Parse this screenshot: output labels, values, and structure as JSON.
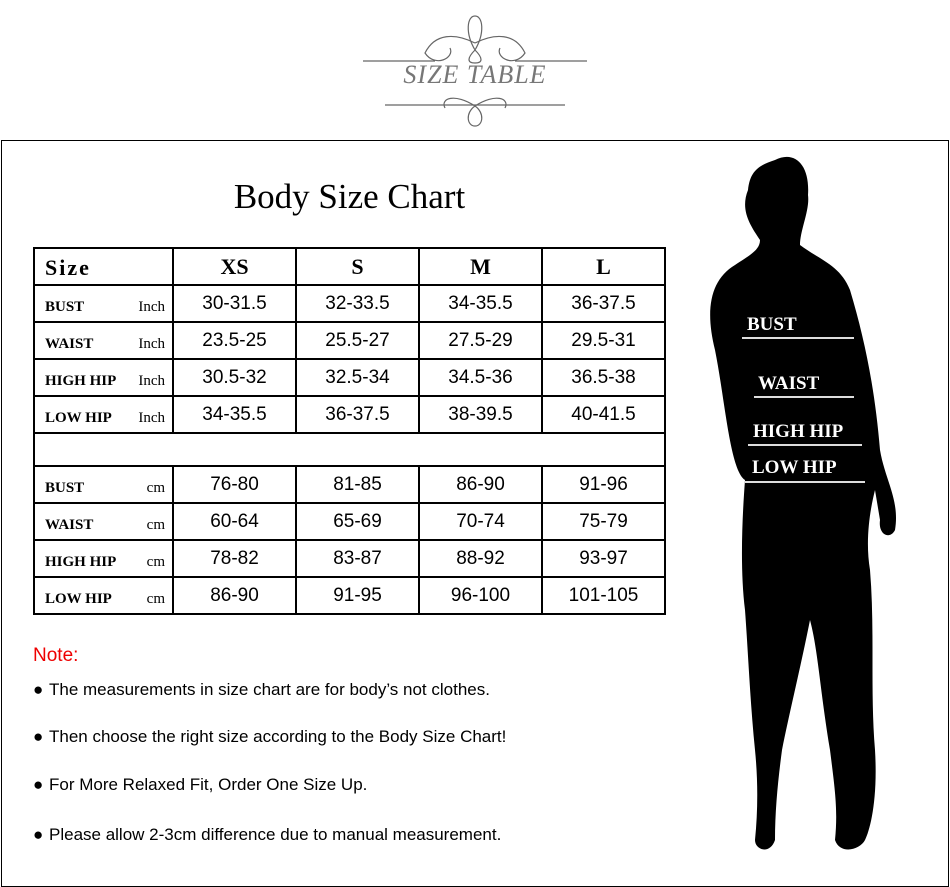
{
  "logo": {
    "text": "SIZE TABLE"
  },
  "title": "Body Size Chart",
  "table": {
    "header": [
      "Size",
      "XS",
      "S",
      "M",
      "L"
    ],
    "inch_rows": [
      {
        "name": "BUST",
        "unit": "Inch",
        "values": [
          "30-31.5",
          "32-33.5",
          "34-35.5",
          "36-37.5"
        ]
      },
      {
        "name": "WAIST",
        "unit": "Inch",
        "values": [
          "23.5-25",
          "25.5-27",
          "27.5-29",
          "29.5-31"
        ]
      },
      {
        "name": "HIGH HIP",
        "unit": "Inch",
        "values": [
          "30.5-32",
          "32.5-34",
          "34.5-36",
          "36.5-38"
        ]
      },
      {
        "name": "LOW HIP",
        "unit": "Inch",
        "values": [
          "34-35.5",
          "36-37.5",
          "38-39.5",
          "40-41.5"
        ]
      }
    ],
    "cm_rows": [
      {
        "name": "BUST",
        "unit": "cm",
        "values": [
          "76-80",
          "81-85",
          "86-90",
          "91-96"
        ]
      },
      {
        "name": "WAIST",
        "unit": "cm",
        "values": [
          "60-64",
          "65-69",
          "70-74",
          "75-79"
        ]
      },
      {
        "name": "HIGH HIP",
        "unit": "cm",
        "values": [
          "78-82",
          "83-87",
          "88-92",
          "93-97"
        ]
      },
      {
        "name": "LOW HIP",
        "unit": "cm",
        "values": [
          "86-90",
          "91-95",
          "96-100",
          "101-105"
        ]
      }
    ]
  },
  "notes": {
    "title": "Note:",
    "items": [
      "The measurements in size chart are for body’s not clothes.",
      "Then choose the right size according to the Body Size Chart!",
      "For More Relaxed Fit, Order One Size Up.",
      "Please allow 2-3cm difference due to manual measurement."
    ]
  },
  "figure": {
    "labels": [
      "BUST",
      "WAIST",
      "HIGH HIP",
      "LOW HIP"
    ]
  },
  "colors": {
    "note_title": "#ee0000",
    "logo": "#777777"
  }
}
